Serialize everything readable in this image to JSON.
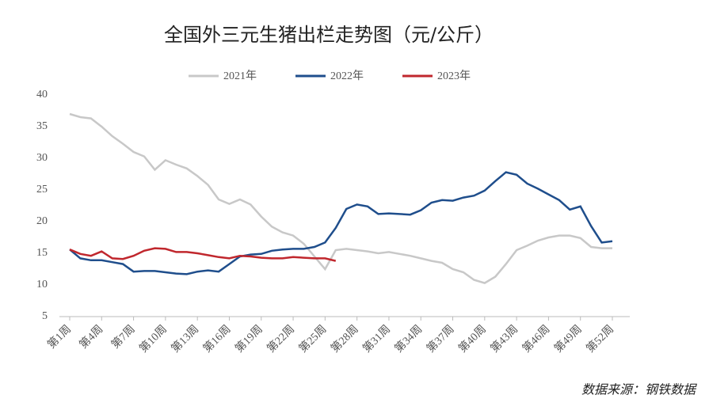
{
  "chart_data": {
    "type": "line",
    "title": "全国外三元生猪出栏走势图（元/公斤）",
    "source": "数据来源：钢铁数据",
    "categories": [
      "第1周",
      null,
      null,
      "第4周",
      null,
      null,
      "第7周",
      null,
      null,
      "第10周",
      null,
      null,
      "第13周",
      null,
      null,
      "第16周",
      null,
      null,
      "第19周",
      null,
      null,
      "第22周",
      null,
      null,
      "第25周",
      null,
      null,
      "第28周",
      null,
      null,
      "第31周",
      null,
      null,
      "第34周",
      null,
      null,
      "第37周",
      null,
      null,
      "第40周",
      null,
      null,
      "第43周",
      null,
      null,
      "第46周",
      null,
      null,
      "第49周",
      null,
      null,
      "第52周"
    ],
    "series": [
      {
        "name": "2021年",
        "color": "#c8c8c8",
        "values": [
          37,
          36.5,
          36.3,
          35,
          33.5,
          32.3,
          31,
          30.3,
          28.2,
          29.7,
          29,
          28.4,
          27.2,
          25.8,
          23.5,
          22.8,
          23.5,
          22.7,
          20.8,
          19.2,
          18.3,
          17.8,
          16.5,
          14.5,
          12.5,
          15.5,
          15.7,
          15.5,
          15.3,
          15.0,
          15.2,
          14.9,
          14.6,
          14.2,
          13.8,
          13.5,
          12.5,
          12,
          10.8,
          10.3,
          11.3,
          13.3,
          15.5,
          16.2,
          17,
          17.5,
          17.8,
          17.8,
          17.4,
          16,
          15.8,
          15.8
        ]
      },
      {
        "name": "2022年",
        "color": "#1f4e8c",
        "values": [
          15.6,
          14.2,
          13.9,
          13.9,
          13.6,
          13.3,
          12.1,
          12.2,
          12.2,
          12.0,
          11.8,
          11.7,
          12.1,
          12.3,
          12.1,
          13.3,
          14.5,
          14.8,
          14.9,
          15.4,
          15.6,
          15.7,
          15.7,
          16,
          16.7,
          19,
          22,
          22.7,
          22.4,
          21.2,
          21.3,
          21.2,
          21.1,
          21.8,
          23,
          23.4,
          23.3,
          23.8,
          24.1,
          24.9,
          26.4,
          27.8,
          27.4,
          26,
          25.2,
          24.3,
          23.4,
          21.9,
          22.4,
          19.3,
          16.7,
          16.9
        ]
      },
      {
        "name": "2023年",
        "color": "#c0272d",
        "values": [
          15.6,
          14.9,
          14.6,
          15.3,
          14.2,
          14.1,
          14.6,
          15.4,
          15.8,
          15.7,
          15.2,
          15.2,
          15,
          14.7,
          14.4,
          14.2,
          14.6,
          14.5,
          14.3,
          14.2,
          14.2,
          14.4,
          14.3,
          14.2,
          14.2,
          13.8,
          null,
          null,
          null,
          null,
          null,
          null,
          null,
          null,
          null,
          null,
          null,
          null,
          null,
          null,
          null,
          null,
          null,
          null,
          null,
          null,
          null,
          null,
          null,
          null,
          null,
          null
        ]
      }
    ],
    "ylim": [
      5,
      40
    ],
    "yticks": [
      5,
      10,
      15,
      20,
      25,
      30,
      35,
      40
    ],
    "grid": false
  }
}
